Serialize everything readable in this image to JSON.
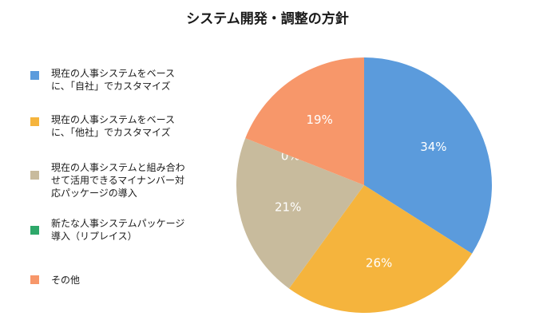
{
  "chart_data": {
    "type": "pie",
    "title": "システム開発・調整の方針",
    "slices": [
      {
        "label": "現在の人事システムをベース\nに､「自社」でカスタマイズ",
        "value": 34,
        "value_label": "34%",
        "color": "#5b9bdc"
      },
      {
        "label": "現在の人事システムをベース\nに､「他社」でカスタマイズ",
        "value": 26,
        "value_label": "26%",
        "color": "#f5b43d"
      },
      {
        "label": "現在の人事システムと組み合わ\nせて活用できるマイナンバー対\n応パッケージの導入",
        "value": 21,
        "value_label": "21%",
        "color": "#c8bb9d"
      },
      {
        "label": "新たな人事システムパッケージ\n導入（リプレイス）",
        "value": 0,
        "value_label": "0%",
        "color": "#2ea86a"
      },
      {
        "label": "その他",
        "value": 19,
        "value_label": "19%",
        "color": "#f7976a"
      }
    ],
    "legend_position": "left"
  }
}
